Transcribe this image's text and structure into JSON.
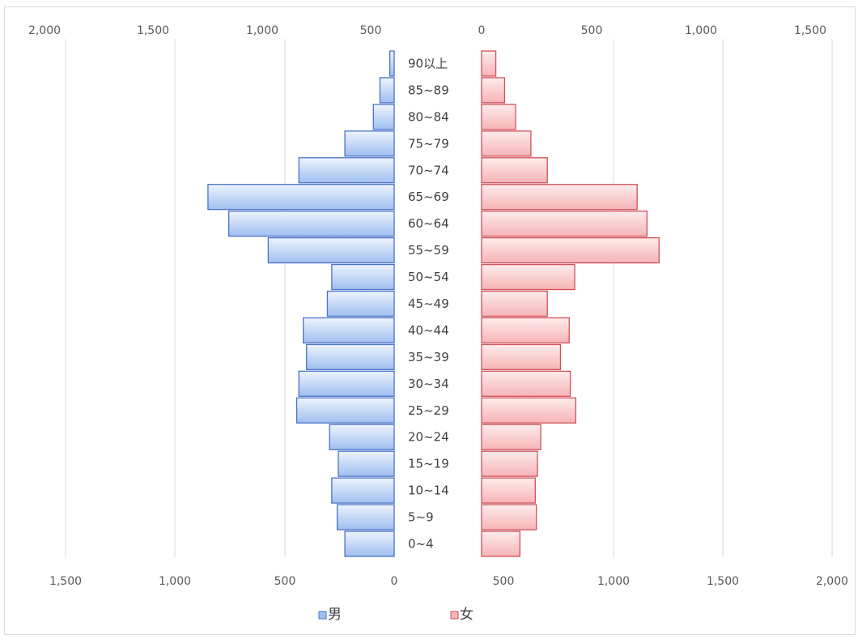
{
  "chart_data": {
    "type": "bar",
    "orientation": "horizontal",
    "layout": "population-pyramid",
    "categories": [
      "0~4",
      "5~9",
      "10~14",
      "15~19",
      "20~24",
      "25~29",
      "30~34",
      "35~39",
      "40~44",
      "45~49",
      "50~54",
      "55~59",
      "60~64",
      "65~69",
      "70~74",
      "75~79",
      "80~84",
      "85~89",
      "90以上"
    ],
    "series": [
      {
        "name": "男",
        "direction": "left",
        "color": "#9fbff0",
        "stroke": "#4a73c8",
        "values": [
          225,
          260,
          285,
          255,
          295,
          445,
          435,
          400,
          415,
          305,
          285,
          575,
          755,
          850,
          435,
          225,
          95,
          65,
          20
        ]
      },
      {
        "name": "女",
        "direction": "right",
        "color": "#f7b4b6",
        "stroke": "#d05058",
        "values": [
          175,
          250,
          245,
          255,
          270,
          430,
          405,
          360,
          400,
          300,
          425,
          810,
          755,
          710,
          300,
          225,
          155,
          105,
          65
        ]
      }
    ],
    "top_axis_ticks": [
      "2,000",
      "1,500",
      "1,000",
      "500",
      "0",
      "500",
      "1,000",
      "1,500"
    ],
    "bottom_axis_ticks": [
      "1,500",
      "1,000",
      "500",
      "0",
      "500",
      "1,000",
      "1,500",
      "2,000"
    ],
    "xlim": [
      0,
      2000
    ],
    "grid": true,
    "legend": {
      "position": "bottom"
    }
  }
}
